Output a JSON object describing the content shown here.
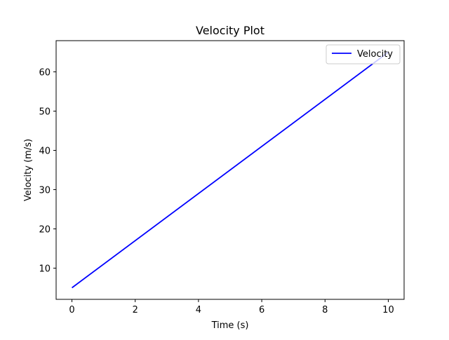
{
  "chart_data": {
    "type": "line",
    "title": "Velocity Plot",
    "xlabel": "Time (s)",
    "ylabel": "Velocity (m/s)",
    "xlim": [
      -0.5,
      10.5
    ],
    "ylim": [
      2.05,
      67.95
    ],
    "xticks": [
      0,
      2,
      4,
      6,
      8,
      10
    ],
    "yticks": [
      10,
      20,
      30,
      40,
      50,
      60
    ],
    "grid": false,
    "legend_position": "upper right",
    "series": [
      {
        "name": "Velocity",
        "color": "#0000ff",
        "x": [
          0,
          10
        ],
        "y": [
          5,
          65
        ]
      }
    ]
  }
}
